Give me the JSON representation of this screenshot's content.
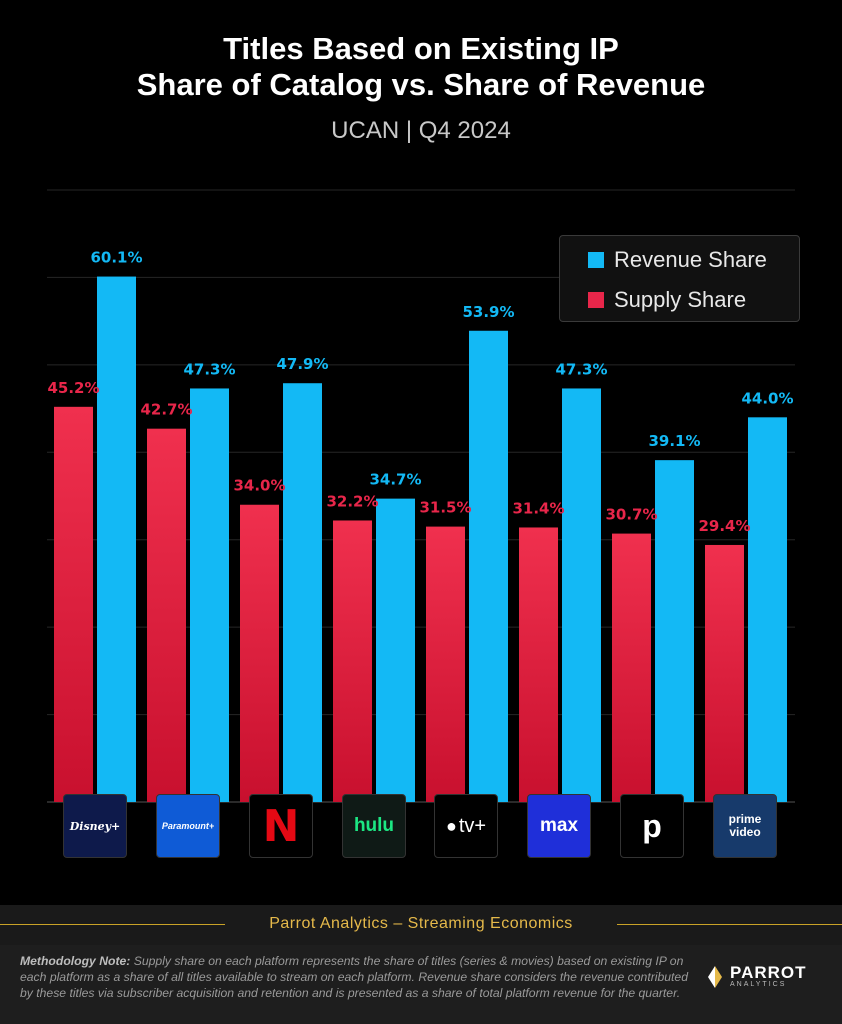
{
  "header": {
    "title_line1": "Titles Based on Existing IP",
    "title_line2": "Share of Catalog vs. Share of Revenue",
    "subtitle": "UCAN |  Q4 2024"
  },
  "colors": {
    "revenue": "#13b9f5",
    "supply": "#e8264a",
    "background": "#000000",
    "accent_gold": "#e5b94a"
  },
  "chart_data": {
    "type": "bar",
    "categories": [
      "Disney+",
      "Paramount+",
      "Netflix",
      "Hulu",
      "Apple TV+",
      "Max",
      "Peacock",
      "Prime Video"
    ],
    "series": [
      {
        "name": "Supply Share",
        "values": [
          45.2,
          42.7,
          34.0,
          32.2,
          31.5,
          31.4,
          30.7,
          29.4
        ],
        "labels": [
          "45.2%",
          "42.7%",
          "34.0%",
          "32.2%",
          "31.5%",
          "31.4%",
          "30.7%",
          "29.4%"
        ]
      },
      {
        "name": "Revenue Share",
        "values": [
          60.1,
          47.3,
          47.9,
          34.7,
          53.9,
          47.3,
          39.1,
          44.0
        ],
        "labels": [
          "60.1%",
          "47.3%",
          "47.9%",
          "34.7%",
          "53.9%",
          "47.3%",
          "39.1%",
          "44.0%"
        ]
      }
    ],
    "ylim": [
      0,
      70
    ],
    "grid": true,
    "legend": "top-right",
    "legend_entries": [
      "Revenue Share",
      "Supply Share"
    ]
  },
  "logos": [
    {
      "name": "disney-plus-logo",
      "text": "Disney+",
      "bg": "#0e1a4b"
    },
    {
      "name": "paramount-plus-logo",
      "text": "Paramount+",
      "bg": "#0f5bd6"
    },
    {
      "name": "netflix-logo",
      "text": "N",
      "bg": "#000000"
    },
    {
      "name": "hulu-logo",
      "text": "hulu",
      "bg": "#0f1a16"
    },
    {
      "name": "apple-tv-logo",
      "text": "tv+",
      "bg": "#000000"
    },
    {
      "name": "max-logo",
      "text": "max",
      "bg": "#1f2fd9"
    },
    {
      "name": "peacock-logo",
      "text": "p",
      "bg": "#000000"
    },
    {
      "name": "prime-video-logo",
      "text": "prime video",
      "bg": "#173a6b"
    }
  ],
  "footer": {
    "banner": "Parrot Analytics – Streaming Economics",
    "method_title": "Methodology Note:",
    "method_body": " Supply share on each platform represents the share of  titles (series & movies) based on existing IP on each platform as a share of all titles available to stream on each platform.  Revenue share considers the revenue contributed by these titles via subscriber acquisition and retention and is presented as a share of total platform revenue for the quarter.",
    "brand_name": "PARROT",
    "brand_sub": "ANALYTICS"
  }
}
